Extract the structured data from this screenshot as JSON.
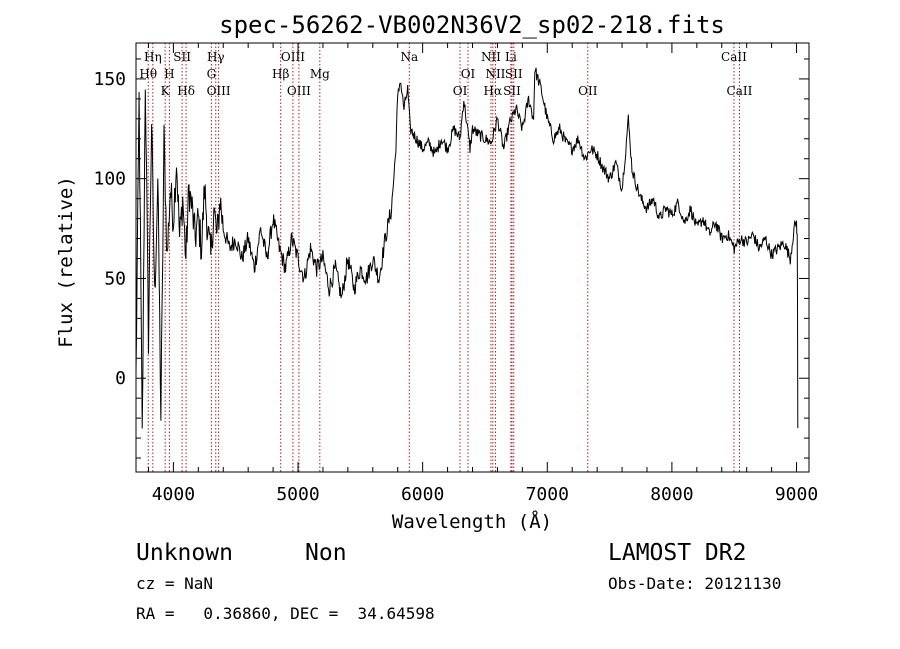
{
  "chart_data": {
    "type": "line",
    "title": "spec-56262-VB002N36V2_sp02-218.fits",
    "xlabel": "Wavelength (Å)",
    "ylabel": "Flux (relative)",
    "xlim": [
      3700,
      9100
    ],
    "ylim": [
      -47,
      168
    ],
    "x_ticks": [
      4000,
      5000,
      6000,
      7000,
      8000,
      9000
    ],
    "y_ticks": [
      0,
      50,
      100,
      150
    ],
    "grid": false,
    "line_color": "#000000",
    "marker_color": "#b22222",
    "spectrum_x": [
      3700,
      3725,
      3750,
      3775,
      3800,
      3825,
      3850,
      3875,
      3900,
      3925,
      3950,
      3975,
      4000,
      4025,
      4050,
      4075,
      4100,
      4125,
      4150,
      4175,
      4200,
      4225,
      4250,
      4275,
      4300,
      4325,
      4350,
      4375,
      4400,
      4450,
      4500,
      4550,
      4600,
      4650,
      4700,
      4750,
      4800,
      4850,
      4900,
      4950,
      5000,
      5050,
      5100,
      5150,
      5200,
      5250,
      5300,
      5350,
      5400,
      5450,
      5500,
      5550,
      5600,
      5650,
      5700,
      5750,
      5780,
      5800,
      5820,
      5850,
      5880,
      5900,
      5950,
      6000,
      6050,
      6100,
      6150,
      6200,
      6250,
      6300,
      6330,
      6350,
      6380,
      6400,
      6450,
      6500,
      6550,
      6580,
      6600,
      6650,
      6700,
      6750,
      6800,
      6850,
      6890,
      6900,
      6950,
      7000,
      7050,
      7100,
      7150,
      7200,
      7250,
      7300,
      7350,
      7400,
      7450,
      7500,
      7550,
      7600,
      7630,
      7650,
      7680,
      7700,
      7750,
      7800,
      7850,
      7900,
      7950,
      8000,
      8050,
      8100,
      8150,
      8200,
      8250,
      8300,
      8350,
      8400,
      8450,
      8500,
      8550,
      8600,
      8650,
      8700,
      8750,
      8800,
      8850,
      8900,
      8950,
      8980,
      9000,
      9005,
      9010
    ],
    "spectrum_y": [
      0,
      140,
      -30,
      150,
      20,
      130,
      40,
      100,
      -20,
      120,
      60,
      95,
      80,
      110,
      70,
      90,
      60,
      95,
      85,
      70,
      80,
      65,
      95,
      75,
      60,
      85,
      70,
      90,
      75,
      65,
      70,
      60,
      70,
      55,
      75,
      60,
      80,
      65,
      55,
      70,
      60,
      50,
      65,
      55,
      60,
      45,
      55,
      40,
      60,
      45,
      55,
      50,
      60,
      50,
      70,
      85,
      110,
      140,
      150,
      135,
      145,
      125,
      120,
      115,
      118,
      112,
      120,
      115,
      125,
      120,
      140,
      130,
      115,
      125,
      122,
      120,
      118,
      125,
      130,
      115,
      128,
      135,
      125,
      140,
      130,
      155,
      145,
      130,
      120,
      125,
      118,
      115,
      120,
      110,
      115,
      112,
      105,
      100,
      108,
      95,
      115,
      130,
      105,
      100,
      90,
      85,
      90,
      80,
      85,
      82,
      88,
      78,
      85,
      75,
      80,
      72,
      78,
      70,
      72,
      65,
      70,
      68,
      72,
      65,
      70,
      62,
      65,
      68,
      60,
      75,
      78,
      72,
      5,
      -20,
      -25
    ],
    "lines": [
      {
        "label": "Hη",
        "x": 3835,
        "row": 1
      },
      {
        "label": "Hθ",
        "x": 3798,
        "row": 2
      },
      {
        "label": "H",
        "x": 3968,
        "row": 2
      },
      {
        "label": "K",
        "x": 3934,
        "row": 3
      },
      {
        "label": "SII",
        "x": 4070,
        "row": 1
      },
      {
        "label": "Hδ",
        "x": 4102,
        "row": 3
      },
      {
        "label": "Hγ",
        "x": 4340,
        "row": 1
      },
      {
        "label": "G",
        "x": 4305,
        "row": 2
      },
      {
        "label": "OIII",
        "x": 4363,
        "row": 3
      },
      {
        "label": "OIII",
        "x": 4959,
        "row": 1
      },
      {
        "label": "Hβ",
        "x": 4861,
        "row": 2
      },
      {
        "label": "OIII",
        "x": 5007,
        "row": 3
      },
      {
        "label": "Mg",
        "x": 5175,
        "row": 2
      },
      {
        "label": "Na",
        "x": 5893,
        "row": 1
      },
      {
        "label": "OI",
        "x": 6364,
        "row": 2
      },
      {
        "label": "OI",
        "x": 6300,
        "row": 3
      },
      {
        "label": "NII",
        "x": 6548,
        "row": 1
      },
      {
        "label": "Li",
        "x": 6708,
        "row": 1
      },
      {
        "label": "NII",
        "x": 6584,
        "row": 2
      },
      {
        "label": "SII",
        "x": 6731,
        "row": 2
      },
      {
        "label": "Hα",
        "x": 6563,
        "row": 3
      },
      {
        "label": "SII",
        "x": 6717,
        "row": 3
      },
      {
        "label": "OII",
        "x": 7325,
        "row": 3
      },
      {
        "label": "CaII",
        "x": 8498,
        "row": 1
      },
      {
        "label": "CaII",
        "x": 8542,
        "row": 3
      }
    ]
  },
  "info": {
    "class_label": "Unknown",
    "subclass_label": "Non",
    "survey_label": "LAMOST DR2",
    "cz_text": "cz = NaN",
    "obs_date_text": "Obs-Date: 20121130",
    "radec_text": "RA =   0.36860, DEC =  34.64598"
  }
}
